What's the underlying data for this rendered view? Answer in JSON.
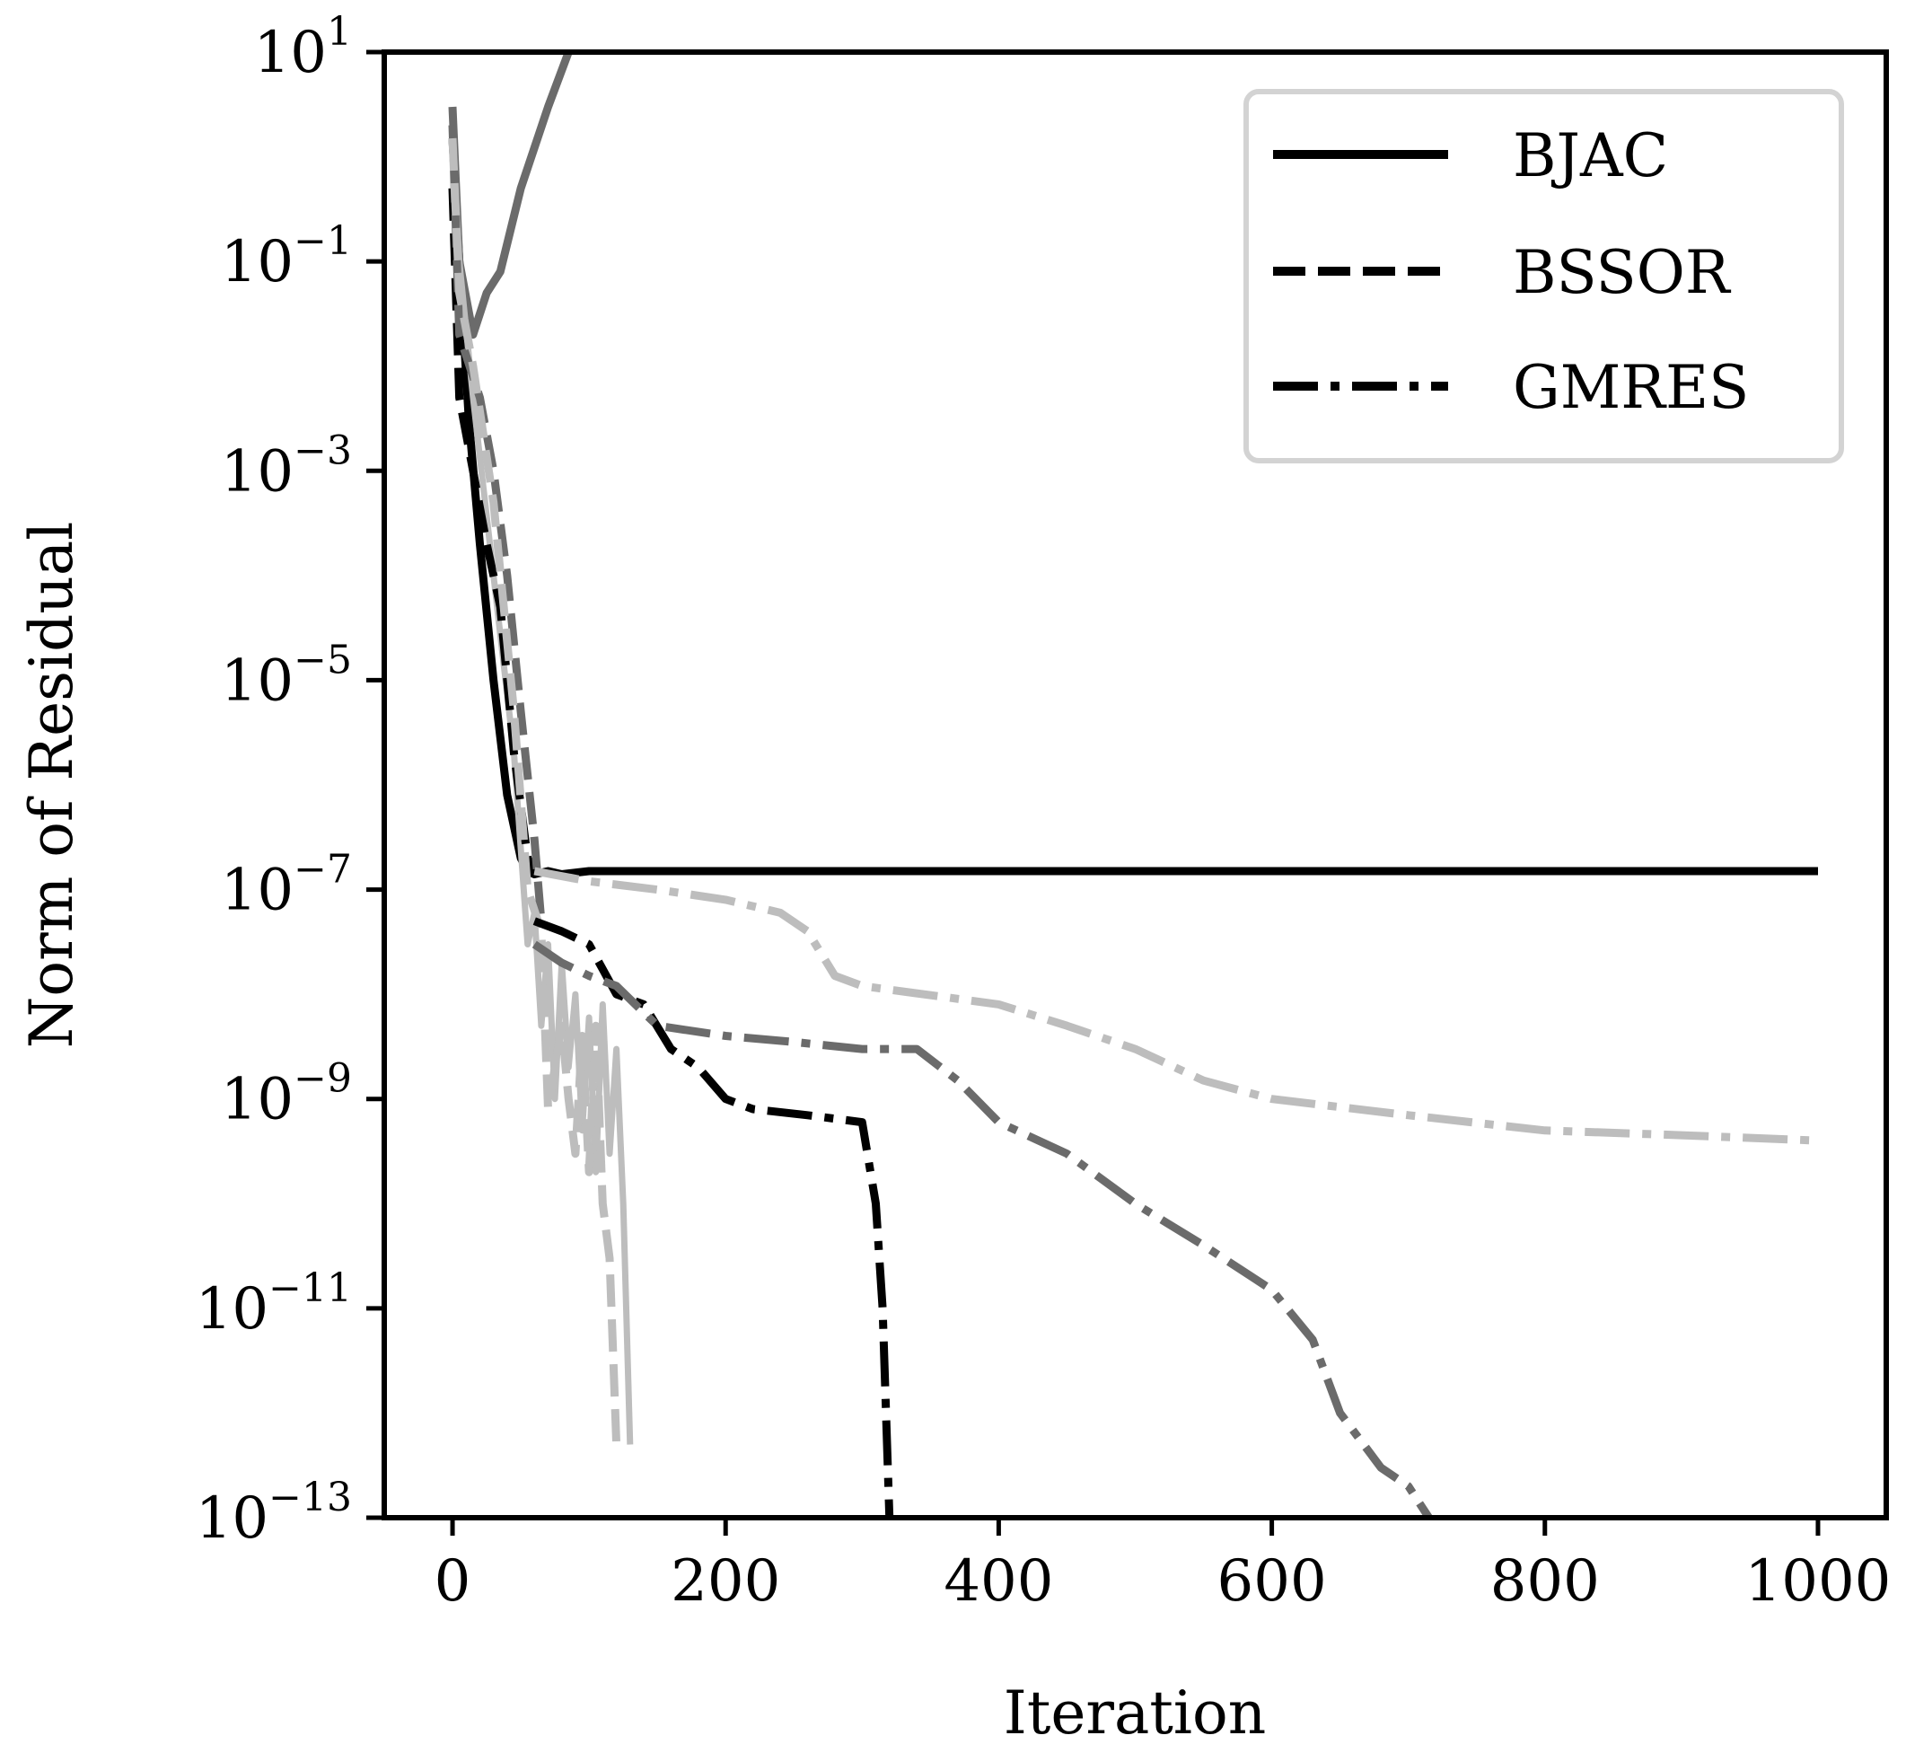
{
  "chart_data": {
    "type": "line",
    "xlabel": "Iteration",
    "ylabel": "Norm of Residual",
    "xlim": [
      -50,
      1050
    ],
    "ylim_log10": [
      -13,
      1
    ],
    "y_scale": "log",
    "grid": false,
    "legend_placement": "top-right",
    "x_ticks": [
      0,
      200,
      400,
      600,
      800,
      1000
    ],
    "y_tick_exponents": [
      1,
      -1,
      -3,
      -5,
      -7,
      -9,
      -11,
      -13
    ],
    "y_tick_base": "10",
    "legend": [
      {
        "label": "BJAC",
        "style": "solid"
      },
      {
        "label": "BSSOR",
        "style": "dashed"
      },
      {
        "label": "GMRES",
        "style": "dashdot"
      }
    ],
    "colors": {
      "black": "#000000",
      "dark_gray": "#6b6b6b",
      "light_gray": "#bdbdbd"
    },
    "series": [
      {
        "style": "solid",
        "color": "black",
        "width": 9,
        "x": [
          0,
          5,
          12,
          20,
          30,
          40,
          50,
          55,
          60,
          70,
          80,
          100,
          200,
          400,
          600,
          800,
          1000
        ],
        "y": [
          1.5,
          0.1,
          0.003,
          0.0002,
          1e-05,
          8e-07,
          2e-07,
          1.5e-07,
          1.4e-07,
          1.5e-07,
          1.4e-07,
          1.5e-07,
          1.5e-07,
          1.5e-07,
          1.5e-07,
          1.5e-07,
          1.5e-07
        ]
      },
      {
        "style": "solid",
        "color": "dark_gray",
        "width": 9,
        "x": [
          0,
          5,
          15,
          25,
          35,
          50,
          70,
          85
        ],
        "y": [
          3,
          0.1,
          0.02,
          0.05,
          0.08,
          0.5,
          3,
          10
        ]
      },
      {
        "style": "solid",
        "color": "light_gray",
        "width": 7,
        "x": [
          0,
          5,
          15,
          30,
          45,
          55,
          60,
          65,
          70,
          75,
          80,
          85,
          90,
          95,
          100,
          105,
          110,
          115,
          120,
          125,
          130
        ],
        "y": [
          1.5,
          0.1,
          0.005,
          0.0001,
          2e-06,
          3e-08,
          6e-08,
          5e-09,
          3e-08,
          1e-09,
          2e-08,
          2e-09,
          1e-08,
          5e-10,
          6e-09,
          2e-10,
          8e-09,
          3e-10,
          3e-09,
          1e-10,
          5e-13
        ]
      },
      {
        "style": "dashed",
        "color": "black",
        "width": 9,
        "x": [
          0,
          5,
          15,
          25,
          35,
          45,
          55,
          60
        ],
        "y": [
          0.5,
          0.005,
          0.001,
          0.0002,
          5e-05,
          2e-06,
          2e-07,
          1.4e-07
        ]
      },
      {
        "style": "dashed",
        "color": "dark_gray",
        "width": 9,
        "x": [
          0,
          5,
          20,
          30,
          40,
          50,
          60,
          65
        ],
        "y": [
          2,
          0.02,
          0.005,
          0.001,
          0.0001,
          5e-06,
          3e-07,
          5e-08
        ]
      },
      {
        "style": "dashed",
        "color": "light_gray",
        "width": 9,
        "x": [
          0,
          5,
          15,
          30,
          45,
          55,
          65,
          70,
          80,
          85,
          90,
          95,
          100,
          105,
          110,
          115,
          120
        ],
        "y": [
          1.5,
          0.05,
          0.01,
          0.0005,
          5e-06,
          1e-07,
          4e-08,
          8e-10,
          5e-09,
          1e-09,
          3e-10,
          4e-09,
          2e-10,
          5e-09,
          1e-10,
          3e-11,
          5e-13
        ]
      },
      {
        "style": "dashdot",
        "color": "black",
        "width": 9,
        "x": [
          60,
          80,
          100,
          120,
          140,
          160,
          180,
          200,
          220,
          260,
          300,
          310,
          315,
          320
        ],
        "y": [
          5e-08,
          4e-08,
          3e-08,
          1e-08,
          8e-09,
          3e-09,
          2e-09,
          1e-09,
          8e-10,
          7e-10,
          6e-10,
          1e-10,
          1e-11,
          1e-13
        ]
      },
      {
        "style": "dashdot",
        "color": "dark_gray",
        "width": 9,
        "x": [
          60,
          80,
          100,
          120,
          150,
          200,
          250,
          300,
          340,
          370,
          400,
          450,
          500,
          550,
          600,
          630,
          650,
          680,
          700,
          720
        ],
        "y": [
          3e-08,
          2e-08,
          1.5e-08,
          1.2e-08,
          5e-09,
          4e-09,
          3.5e-09,
          3e-09,
          3e-09,
          1.5e-09,
          6e-10,
          3e-10,
          1e-10,
          4e-11,
          1.5e-11,
          5e-12,
          1e-12,
          3e-13,
          2e-13,
          8e-14
        ]
      },
      {
        "style": "dashdot",
        "color": "light_gray",
        "width": 9,
        "x": [
          60,
          100,
          150,
          200,
          240,
          260,
          280,
          300,
          400,
          450,
          500,
          550,
          600,
          700,
          800,
          900,
          1000
        ],
        "y": [
          1.5e-07,
          1.2e-07,
          1e-07,
          8e-08,
          6e-08,
          4e-08,
          1.5e-08,
          1.2e-08,
          8e-09,
          5e-09,
          3e-09,
          1.5e-09,
          1e-09,
          7e-10,
          5e-10,
          4.5e-10,
          4e-10
        ]
      }
    ]
  }
}
